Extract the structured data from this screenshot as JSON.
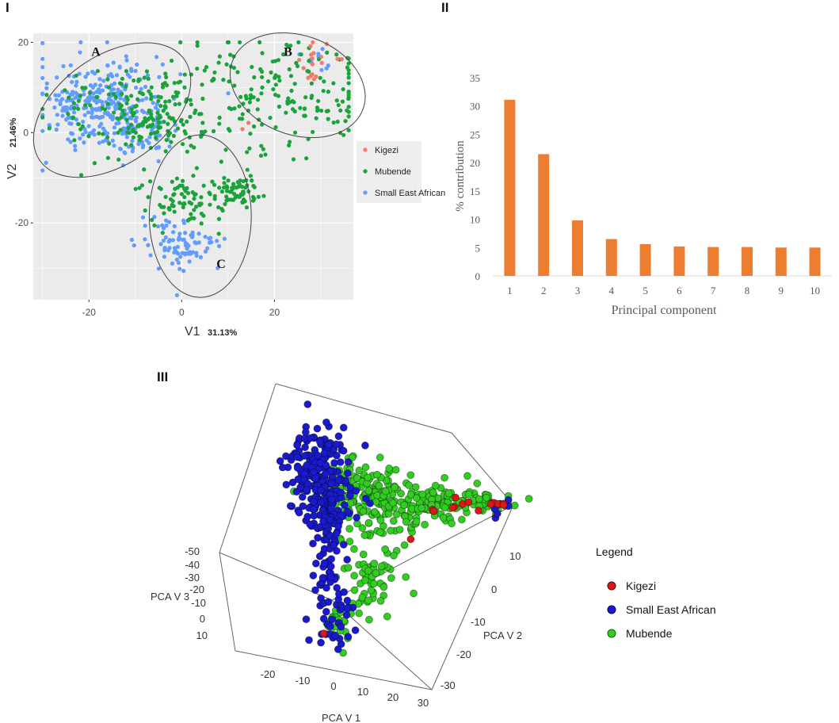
{
  "panels": {
    "I": {
      "label": "I"
    },
    "II": {
      "label": "II"
    },
    "III": {
      "label": "III"
    }
  },
  "colors": {
    "kigezi": "#f8766d",
    "mubende": "#1aa33b",
    "sea": "#619cff",
    "bar": "#ed7d31",
    "red3d": "#d91a1a",
    "blue3d": "#1a1acc",
    "green3d": "#33cc22"
  },
  "chart_data": [
    {
      "type": "scatter",
      "panel": "I",
      "xlabel": "V1",
      "xlabel_pct": "31.13%",
      "ylabel": "V2",
      "ylabel_pct": "21.46%",
      "xlim": [
        -32,
        37
      ],
      "ylim": [
        -37,
        22
      ],
      "xticks": [
        -20,
        0,
        20
      ],
      "yticks": [
        20,
        0,
        -20
      ],
      "x_tick_labels": [
        "-20",
        "0",
        "20"
      ],
      "y_tick_labels": [
        "20",
        "0",
        "-20"
      ],
      "clusters": [
        {
          "label": "A",
          "cx": -15,
          "cy": 5,
          "rx": 19,
          "ry": 12,
          "angle": -35
        },
        {
          "label": "B",
          "cx": 25,
          "cy": 10.5,
          "rx": 15,
          "ry": 11,
          "angle": 20
        },
        {
          "label": "C",
          "cx": 4,
          "cy": -18.5,
          "rx": 11,
          "ry": 18,
          "angle": 0
        }
      ],
      "legend": [
        "Kigezi",
        "Mubende",
        "Small East African"
      ],
      "series": [
        {
          "name": "Kigezi",
          "region_samples": [
            [
              30,
              17,
              3,
              14
            ],
            [
              28,
              12,
              1,
              5
            ],
            [
              13,
              1,
              1,
              2
            ]
          ]
        },
        {
          "name": "Mubende",
          "region_samples": [
            [
              -10,
              5,
              10,
              150
            ],
            [
              20,
              9,
              12,
              180
            ],
            [
              1,
              -15,
              5,
              80
            ],
            [
              12,
              -13,
              3,
              60
            ],
            [
              -5,
              2,
              6,
              50
            ]
          ]
        },
        {
          "name": "Small East African",
          "region_samples": [
            [
              -18,
              7,
              8,
              260
            ],
            [
              -10,
              0,
              5,
              80
            ],
            [
              0,
              -25,
              5,
              90
            ],
            [
              30,
              16,
              3,
              10
            ]
          ]
        }
      ]
    },
    {
      "type": "bar",
      "panel": "II",
      "categories": [
        "1",
        "2",
        "3",
        "4",
        "5",
        "6",
        "7",
        "8",
        "9",
        "10"
      ],
      "values": [
        31.1,
        21.5,
        9.8,
        6.5,
        5.6,
        5.2,
        5.1,
        5.1,
        5.0,
        5.0
      ],
      "ylim": [
        0,
        35
      ],
      "yticks": [
        "35",
        "30",
        "25",
        "20",
        "15",
        "10",
        "5",
        "0"
      ],
      "xlabel": "Principal component",
      "ylabel": "% contribution"
    },
    {
      "type": "scatter",
      "panel": "III",
      "title": "Legend",
      "axes": {
        "x": "PCA V 1",
        "y": "PCA V 2",
        "z": "PCA V 3"
      },
      "x_ticks": [
        "-20",
        "-10",
        "0",
        "10",
        "20",
        "30"
      ],
      "y_ticks": [
        "10",
        "0",
        "-10",
        "-20",
        "-30"
      ],
      "z_ticks": [
        "-50",
        "-40",
        "-30",
        "-20",
        "-10",
        "0",
        "10"
      ],
      "legend": [
        "Kigezi",
        "Small East African",
        "Mubende"
      ]
    }
  ]
}
